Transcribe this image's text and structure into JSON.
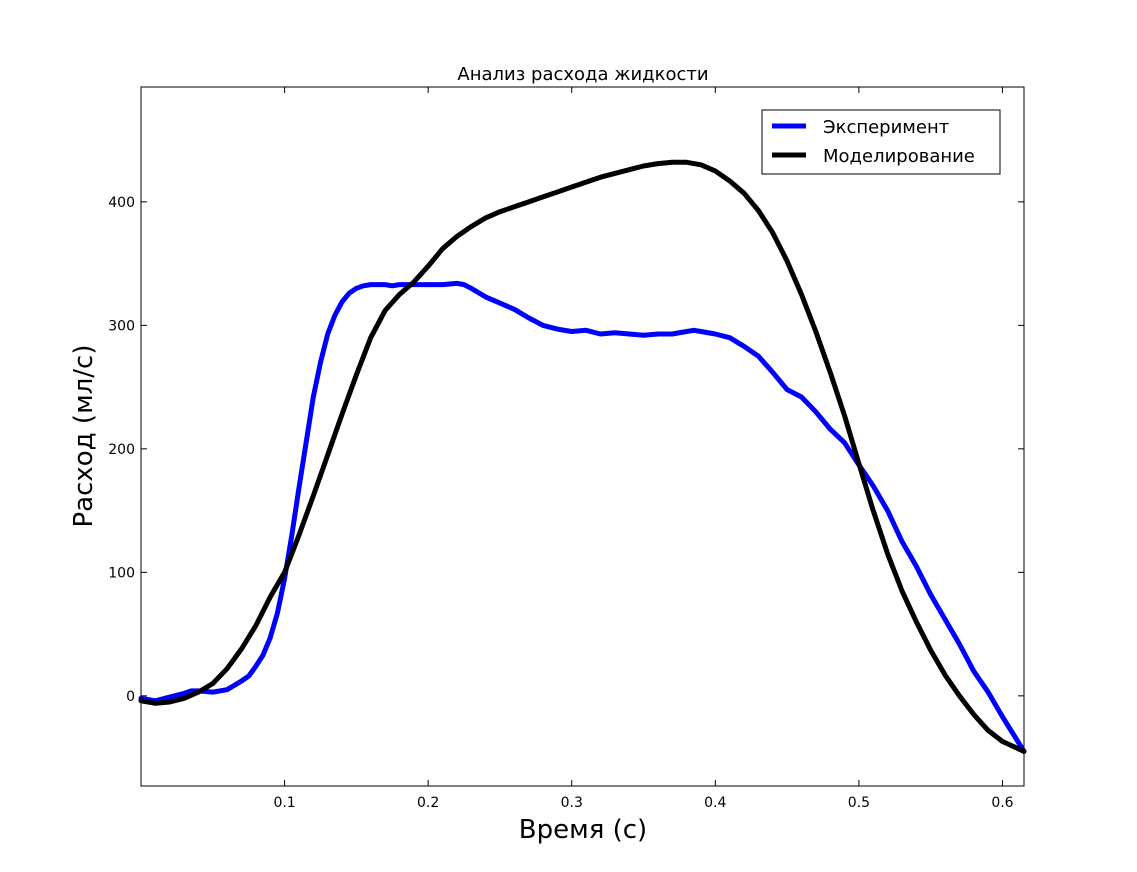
{
  "chart_data": {
    "type": "line",
    "title": "Анализ расхода жидкости",
    "xlabel": "Время (с)",
    "ylabel": "Расход (мл/с)",
    "xlim": [
      0.0,
      0.615
    ],
    "ylim": [
      -73,
      493
    ],
    "xticks": [
      0.1,
      0.2,
      0.3,
      0.4,
      0.5,
      0.6
    ],
    "xtick_labels": [
      "0.1",
      "0.2",
      "0.3",
      "0.4",
      "0.5",
      "0.6"
    ],
    "yticks": [
      0,
      100,
      200,
      300,
      400
    ],
    "ytick_labels": [
      "0",
      "100",
      "200",
      "300",
      "400"
    ],
    "grid": false,
    "legend": "top-right",
    "series": [
      {
        "name": "Эксперимент",
        "color": "#0000ff",
        "x": [
          0.0,
          0.01,
          0.02,
          0.03,
          0.035,
          0.04,
          0.05,
          0.06,
          0.07,
          0.075,
          0.08,
          0.085,
          0.09,
          0.095,
          0.1,
          0.105,
          0.11,
          0.115,
          0.12,
          0.125,
          0.13,
          0.135,
          0.14,
          0.145,
          0.15,
          0.155,
          0.16,
          0.165,
          0.17,
          0.175,
          0.18,
          0.19,
          0.2,
          0.21,
          0.22,
          0.225,
          0.23,
          0.24,
          0.25,
          0.26,
          0.27,
          0.28,
          0.29,
          0.3,
          0.31,
          0.32,
          0.33,
          0.34,
          0.35,
          0.36,
          0.37,
          0.38,
          0.385,
          0.39,
          0.4,
          0.41,
          0.42,
          0.43,
          0.44,
          0.45,
          0.46,
          0.47,
          0.48,
          0.49,
          0.5,
          0.51,
          0.52,
          0.53,
          0.54,
          0.55,
          0.56,
          0.57,
          0.58,
          0.59,
          0.6,
          0.615
        ],
        "y": [
          -2,
          -4,
          -1,
          2,
          4,
          4,
          3,
          5,
          12,
          16,
          24,
          33,
          47,
          67,
          95,
          130,
          168,
          205,
          242,
          270,
          293,
          308,
          319,
          326,
          330,
          332,
          333,
          333,
          333,
          332,
          333,
          333,
          333,
          333,
          334,
          333,
          330,
          323,
          318,
          313,
          306,
          300,
          297,
          295,
          296,
          293,
          294,
          293,
          292,
          293,
          293,
          295,
          296,
          295,
          293,
          290,
          283,
          275,
          262,
          248,
          242,
          230,
          216,
          205,
          187,
          170,
          150,
          125,
          105,
          82,
          62,
          42,
          20,
          3,
          -17,
          -45
        ]
      },
      {
        "name": "Моделирование",
        "color": "#000000",
        "x": [
          0.0,
          0.01,
          0.02,
          0.03,
          0.04,
          0.05,
          0.06,
          0.07,
          0.08,
          0.09,
          0.1,
          0.11,
          0.12,
          0.13,
          0.14,
          0.15,
          0.16,
          0.17,
          0.18,
          0.19,
          0.2,
          0.21,
          0.22,
          0.23,
          0.24,
          0.25,
          0.26,
          0.27,
          0.28,
          0.29,
          0.3,
          0.31,
          0.32,
          0.33,
          0.34,
          0.35,
          0.36,
          0.37,
          0.38,
          0.39,
          0.4,
          0.41,
          0.42,
          0.43,
          0.44,
          0.45,
          0.46,
          0.47,
          0.48,
          0.49,
          0.5,
          0.51,
          0.52,
          0.53,
          0.54,
          0.55,
          0.56,
          0.57,
          0.58,
          0.59,
          0.6,
          0.615
        ],
        "y": [
          -4,
          -6,
          -5,
          -2,
          3,
          10,
          22,
          38,
          57,
          80,
          100,
          130,
          162,
          195,
          228,
          260,
          290,
          312,
          325,
          335,
          348,
          362,
          372,
          380,
          387,
          392,
          396,
          400,
          404,
          408,
          412,
          416,
          420,
          423,
          426,
          429,
          431,
          432,
          432,
          430,
          425,
          417,
          407,
          393,
          375,
          352,
          325,
          295,
          262,
          227,
          188,
          150,
          115,
          85,
          60,
          37,
          17,
          0,
          -15,
          -28,
          -37,
          -45
        ]
      }
    ]
  }
}
